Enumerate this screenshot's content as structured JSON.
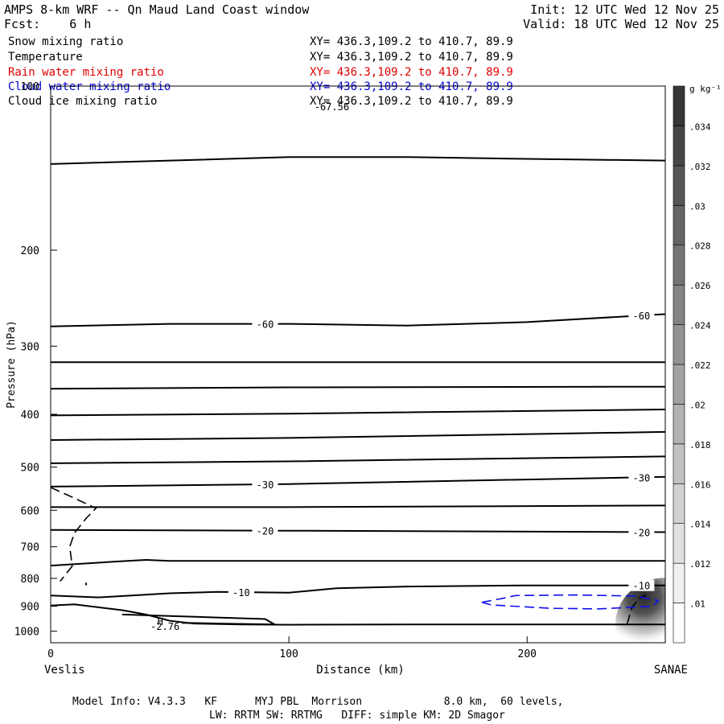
{
  "header": {
    "title": "AMPS 8-km WRF -- Qn Maud Land Coast window",
    "forecast": "Fcst:    6 h",
    "init": "Init: 12 UTC Wed 12 Nov 25",
    "valid": "Valid: 18 UTC Wed 12 Nov 25"
  },
  "fields": [
    {
      "name": "Snow mixing ratio",
      "coords": "XY= 436.3,109.2 to 410.7, 89.9",
      "color": "#000000"
    },
    {
      "name": "Temperature",
      "coords": "XY= 436.3,109.2 to 410.7, 89.9",
      "color": "#000000"
    },
    {
      "name": "Rain water mixing ratio",
      "coords": "XY= 436.3,109.2 to 410.7, 89.9",
      "color": "#ff0000"
    },
    {
      "name": "Cloud water mixing ratio",
      "coords": "XY= 436.3,109.2 to 410.7, 89.9",
      "color": "#0000ff"
    },
    {
      "name": "Cloud ice mixing ratio",
      "coords": "XY= 436.3,109.2 to 410.7, 89.9",
      "color": "#000000"
    }
  ],
  "footer": {
    "line1": "Model Info: V4.3.3   KF      MYJ PBL  Morrison             8.0 km,  60 levels,",
    "line2": "LW: RRTM SW: RRTMG   DIFF: simple KM: 2D Smagor"
  },
  "chart_data": {
    "type": "line",
    "title": "",
    "xlabel": "Distance (km)",
    "ylabel": "Pressure (hPa)",
    "xlim": [
      0,
      258
    ],
    "ylim": [
      1050,
      100
    ],
    "y_scale": "log",
    "x_ticks": [
      0,
      100,
      200
    ],
    "y_ticks": [
      100,
      200,
      300,
      400,
      500,
      600,
      700,
      800,
      900,
      1000
    ],
    "x_endpoint_labels": {
      "left": "Veslis",
      "right": "SANAE"
    },
    "temperature_contours": [
      {
        "name": "",
        "points": [
          [
            0,
            139
          ],
          [
            50,
            137
          ],
          [
            100,
            135
          ],
          [
            150,
            135
          ],
          [
            200,
            136
          ],
          [
            258,
            137
          ]
        ]
      },
      {
        "name": "-60",
        "label": "-60",
        "label_x": 90,
        "points": [
          [
            0,
            276
          ],
          [
            50,
            273
          ],
          [
            100,
            273
          ],
          [
            150,
            275
          ],
          [
            200,
            271
          ],
          [
            258,
            262
          ]
        ]
      },
      {
        "name": "",
        "points": [
          [
            0,
            321
          ],
          [
            258,
            321
          ]
        ]
      },
      {
        "name": "",
        "points": [
          [
            0,
            359
          ],
          [
            100,
            357
          ],
          [
            258,
            356
          ]
        ]
      },
      {
        "name": "",
        "points": [
          [
            0,
            402
          ],
          [
            100,
            399
          ],
          [
            258,
            392
          ]
        ]
      },
      {
        "name": "",
        "points": [
          [
            0,
            446
          ],
          [
            100,
            442
          ],
          [
            258,
            431
          ]
        ]
      },
      {
        "name": "",
        "points": [
          [
            0,
            492
          ],
          [
            100,
            488
          ],
          [
            258,
            478
          ]
        ]
      },
      {
        "name": "-30",
        "label": "-30",
        "label_x": 90,
        "points": [
          [
            0,
            543
          ],
          [
            100,
            537
          ],
          [
            258,
            521
          ]
        ]
      },
      {
        "name": "",
        "points": [
          [
            0,
            592
          ],
          [
            100,
            592
          ],
          [
            258,
            588
          ]
        ]
      },
      {
        "name": "-20",
        "label": "-20",
        "label_x": 90,
        "points": [
          [
            0,
            652
          ],
          [
            100,
            654
          ],
          [
            258,
            658
          ]
        ]
      },
      {
        "name": "",
        "points": [
          [
            0,
            758
          ],
          [
            30,
            744
          ],
          [
            40,
            740
          ],
          [
            50,
            743
          ],
          [
            100,
            743
          ],
          [
            258,
            743
          ]
        ]
      },
      {
        "name": "-10",
        "label": "-10",
        "label_x": 80,
        "points": [
          [
            0,
            860
          ],
          [
            20,
            867
          ],
          [
            50,
            852
          ],
          [
            70,
            847
          ],
          [
            100,
            850
          ],
          [
            120,
            834
          ],
          [
            150,
            828
          ],
          [
            200,
            824
          ],
          [
            258,
            824
          ]
        ]
      },
      {
        "name": "",
        "points": [
          [
            0,
            897
          ],
          [
            10,
            893
          ],
          [
            30,
            915
          ],
          [
            40,
            932
          ],
          [
            50,
            957
          ],
          [
            60,
            968
          ],
          [
            80,
            972
          ],
          [
            100,
            973
          ],
          [
            150,
            972
          ],
          [
            200,
            972
          ],
          [
            258,
            972
          ]
        ]
      },
      {
        "name": "",
        "points": [
          [
            30,
            932
          ],
          [
            90,
            950
          ],
          [
            94,
            972
          ],
          [
            70,
            968
          ],
          [
            55,
            965
          ]
        ]
      }
    ],
    "annotations": [
      {
        "text": "-67.56",
        "x": 118,
        "y": 107
      },
      {
        "text": "H",
        "x": 46,
        "y": 942
      },
      {
        "text": "-2.76",
        "x": 48,
        "y": 962
      }
    ],
    "snow_contours": [
      {
        "points": [
          [
            0,
            545
          ],
          [
            8,
            565
          ],
          [
            19,
            595
          ],
          [
            15,
            620
          ],
          [
            10,
            660
          ],
          [
            8,
            700
          ],
          [
            9,
            760
          ],
          [
            4,
            810
          ]
        ]
      },
      {
        "points": [
          [
            242,
            970
          ],
          [
            244,
            905
          ],
          [
            247,
            870
          ],
          [
            250,
            858
          ]
        ]
      }
    ],
    "cloud_water_contour": [
      [
        181,
        885
      ],
      [
        190,
        870
      ],
      [
        195,
        860
      ],
      [
        220,
        858
      ],
      [
        245,
        862
      ],
      [
        255,
        878
      ],
      [
        253,
        900
      ],
      [
        230,
        910
      ],
      [
        210,
        908
      ],
      [
        185,
        895
      ],
      [
        181,
        885
      ]
    ],
    "snow_shading": {
      "max": 0.036,
      "center_km": 258,
      "center_hpa": 972
    },
    "colorbar": {
      "unit": "g kg⁻¹",
      "ticks": [
        ".01",
        ".012",
        ".014",
        ".016",
        ".018",
        ".02",
        ".022",
        ".024",
        ".026",
        ".028",
        ".03",
        ".032",
        ".034"
      ]
    }
  }
}
